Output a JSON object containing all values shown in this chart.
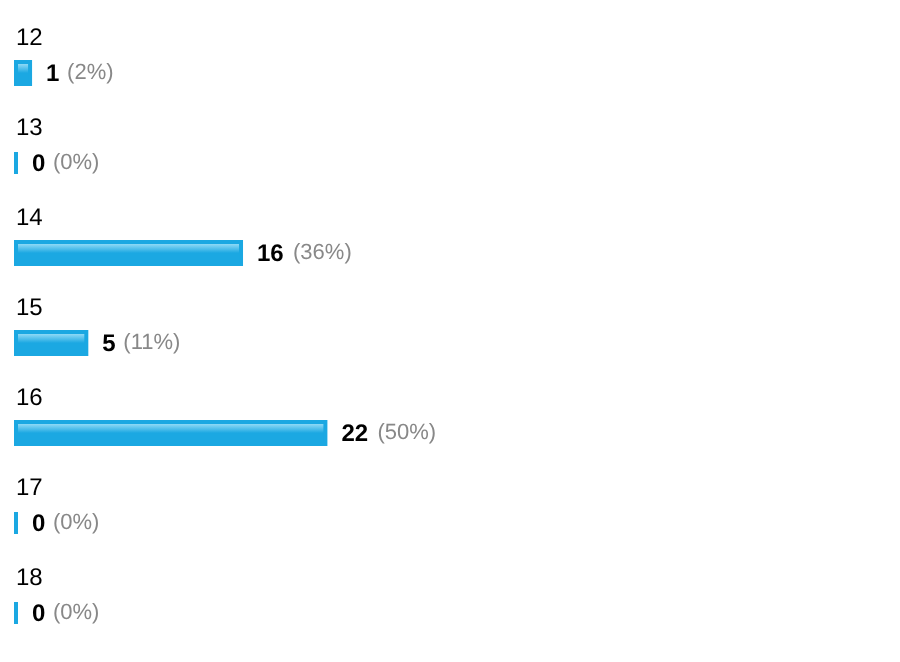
{
  "chart_data": {
    "type": "bar",
    "orientation": "horizontal",
    "categories": [
      "12",
      "13",
      "14",
      "15",
      "16",
      "17",
      "18"
    ],
    "values": [
      1,
      0,
      16,
      5,
      22,
      0,
      0
    ],
    "color": "#1ba8e2",
    "data_labels": true,
    "annotations": [
      {
        "text": "(2%)",
        "x": 1,
        "y": "12"
      },
      {
        "text": "(0%)",
        "x": 0,
        "y": "13"
      },
      {
        "text": "(36%)",
        "x": 16,
        "y": "14"
      },
      {
        "text": "(11%)",
        "x": 5,
        "y": "15"
      },
      {
        "text": "(50%)",
        "x": 22,
        "y": "16"
      },
      {
        "text": "(0%)",
        "x": 0,
        "y": "17"
      },
      {
        "text": "(0%)",
        "x": 0,
        "y": "18"
      }
    ]
  }
}
